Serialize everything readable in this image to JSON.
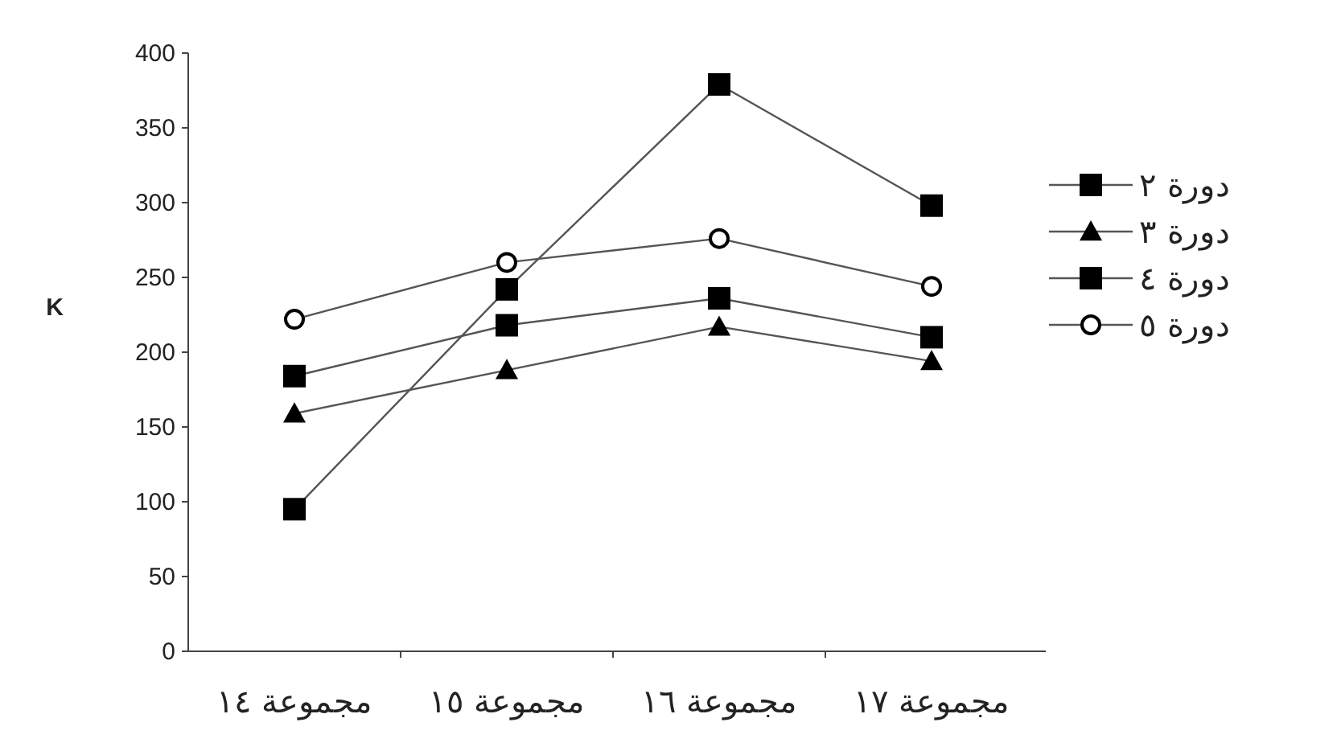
{
  "chart_data": {
    "type": "line",
    "ylabel": "K",
    "categories": [
      "مجموعة ١٤",
      "مجموعة ١٥",
      "مجموعة ١٦",
      "مجموعة ١٧"
    ],
    "ylim": [
      0,
      400
    ],
    "yticks": [
      0,
      50,
      100,
      150,
      200,
      250,
      300,
      350,
      400
    ],
    "grid": false,
    "legend": "right",
    "series": [
      {
        "name": "دورة ٢",
        "color": "#000000",
        "marker": "square",
        "values": [
          95,
          242,
          379,
          298
        ]
      },
      {
        "name": "دورة ٣",
        "color": "#000000",
        "marker": "triangle",
        "values": [
          159,
          188,
          217,
          194
        ]
      },
      {
        "name": "دورة ٤",
        "color": "#000000",
        "marker": "square",
        "values": [
          184,
          218,
          236,
          210
        ]
      },
      {
        "name": "دورة ٥",
        "color": "#000000",
        "marker": "circle",
        "values": [
          222,
          260,
          276,
          244
        ]
      }
    ]
  }
}
